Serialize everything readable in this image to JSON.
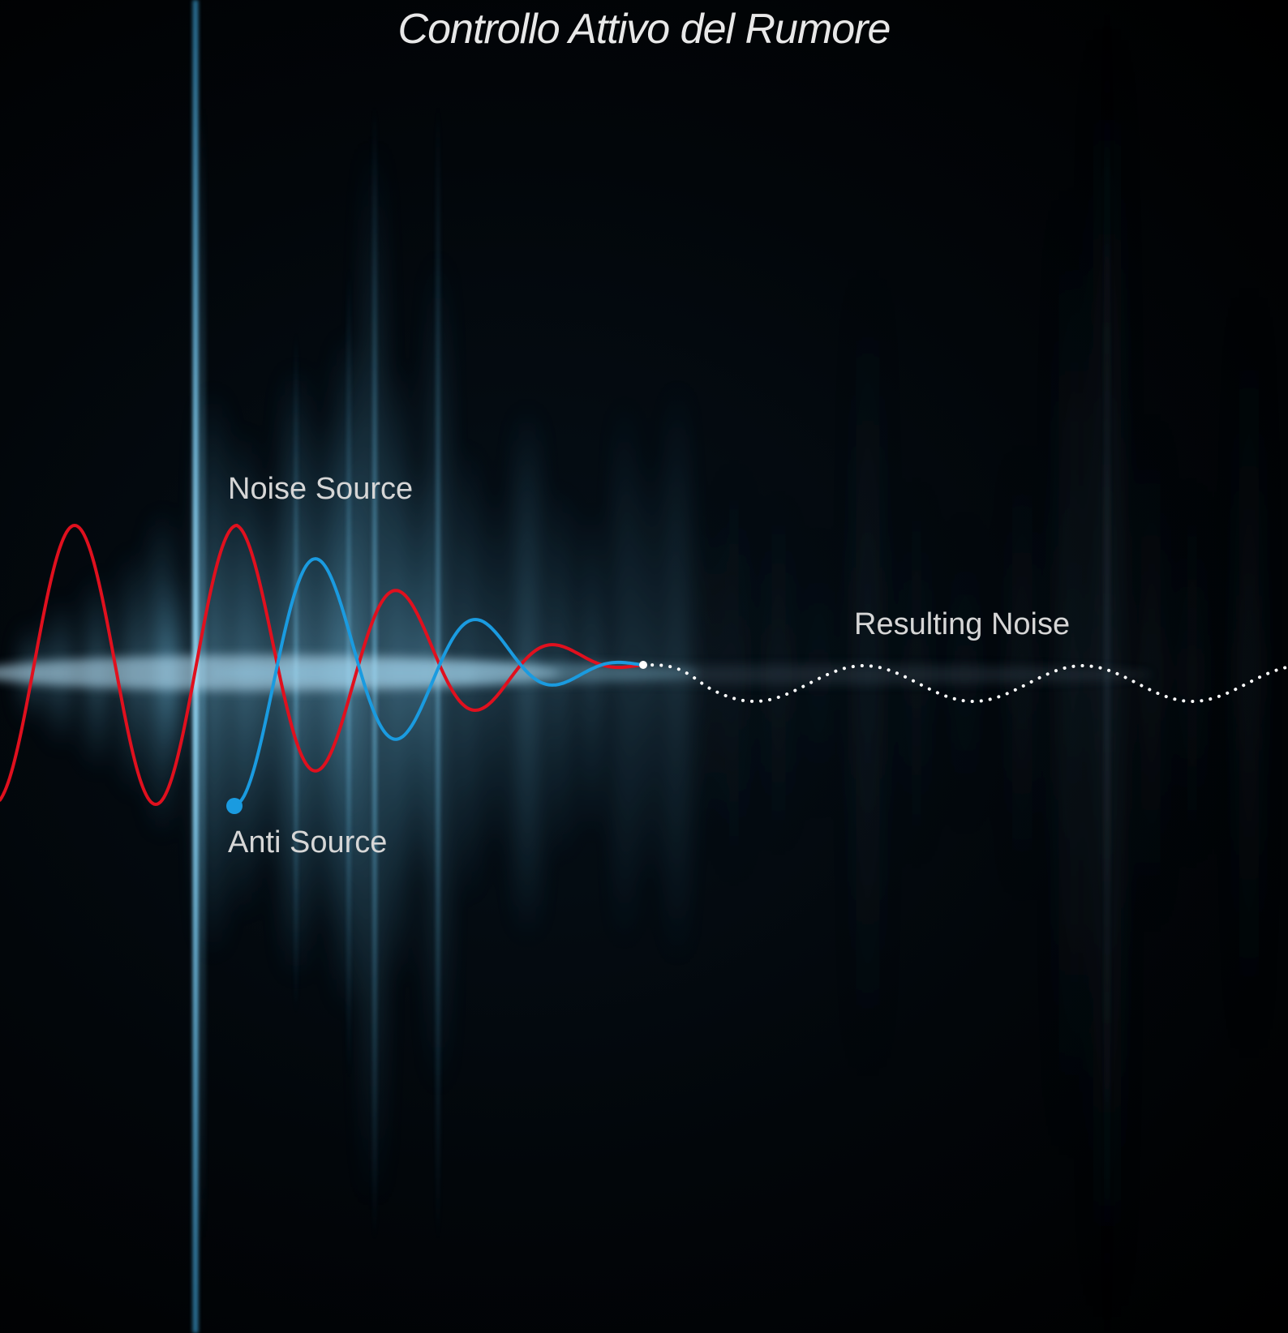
{
  "title": "Controllo Attivo del Rumore",
  "labels": {
    "noise_source": "Noise Source",
    "anti_source": "Anti Source",
    "resulting_noise": "Resulting Noise"
  },
  "colors": {
    "background": "#000000",
    "noise_wave": "#e0101e",
    "anti_wave": "#1a9be0",
    "resulting_wave": "#ffffff",
    "glow": "#4fb6e8"
  }
}
